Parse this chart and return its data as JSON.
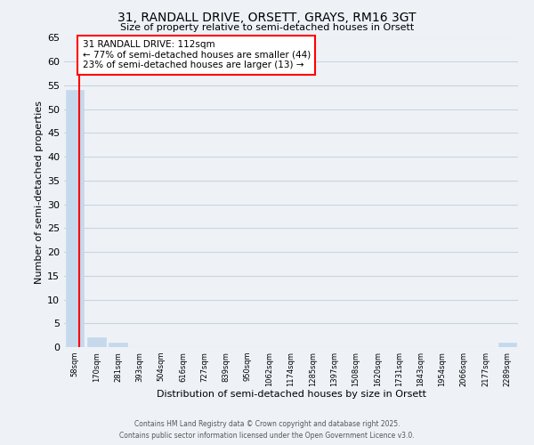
{
  "title": "31, RANDALL DRIVE, ORSETT, GRAYS, RM16 3GT",
  "subtitle": "Size of property relative to semi-detached houses in Orsett",
  "bar_labels": [
    "58sqm",
    "170sqm",
    "281sqm",
    "393sqm",
    "504sqm",
    "616sqm",
    "727sqm",
    "839sqm",
    "950sqm",
    "1062sqm",
    "1174sqm",
    "1285sqm",
    "1397sqm",
    "1508sqm",
    "1620sqm",
    "1731sqm",
    "1843sqm",
    "1954sqm",
    "2066sqm",
    "2177sqm",
    "2289sqm"
  ],
  "bar_values": [
    54,
    2,
    1,
    0,
    0,
    0,
    0,
    0,
    0,
    0,
    0,
    0,
    0,
    0,
    0,
    0,
    0,
    0,
    0,
    0,
    1
  ],
  "bar_color": "#c6d9ec",
  "grid_color": "#c8d4e0",
  "background_color": "#eef2f7",
  "xlabel": "Distribution of semi-detached houses by size in Orsett",
  "ylabel": "Number of semi-detached properties",
  "ylim": [
    0,
    65
  ],
  "yticks": [
    0,
    5,
    10,
    15,
    20,
    25,
    30,
    35,
    40,
    45,
    50,
    55,
    60,
    65
  ],
  "property_bin_index": 0,
  "annotation_title": "31 RANDALL DRIVE: 112sqm",
  "annotation_line1": "← 77% of semi-detached houses are smaller (44)",
  "annotation_line2": "23% of semi-detached houses are larger (13) →",
  "footer_line1": "Contains HM Land Registry data © Crown copyright and database right 2025.",
  "footer_line2": "Contains public sector information licensed under the Open Government Licence v3.0."
}
